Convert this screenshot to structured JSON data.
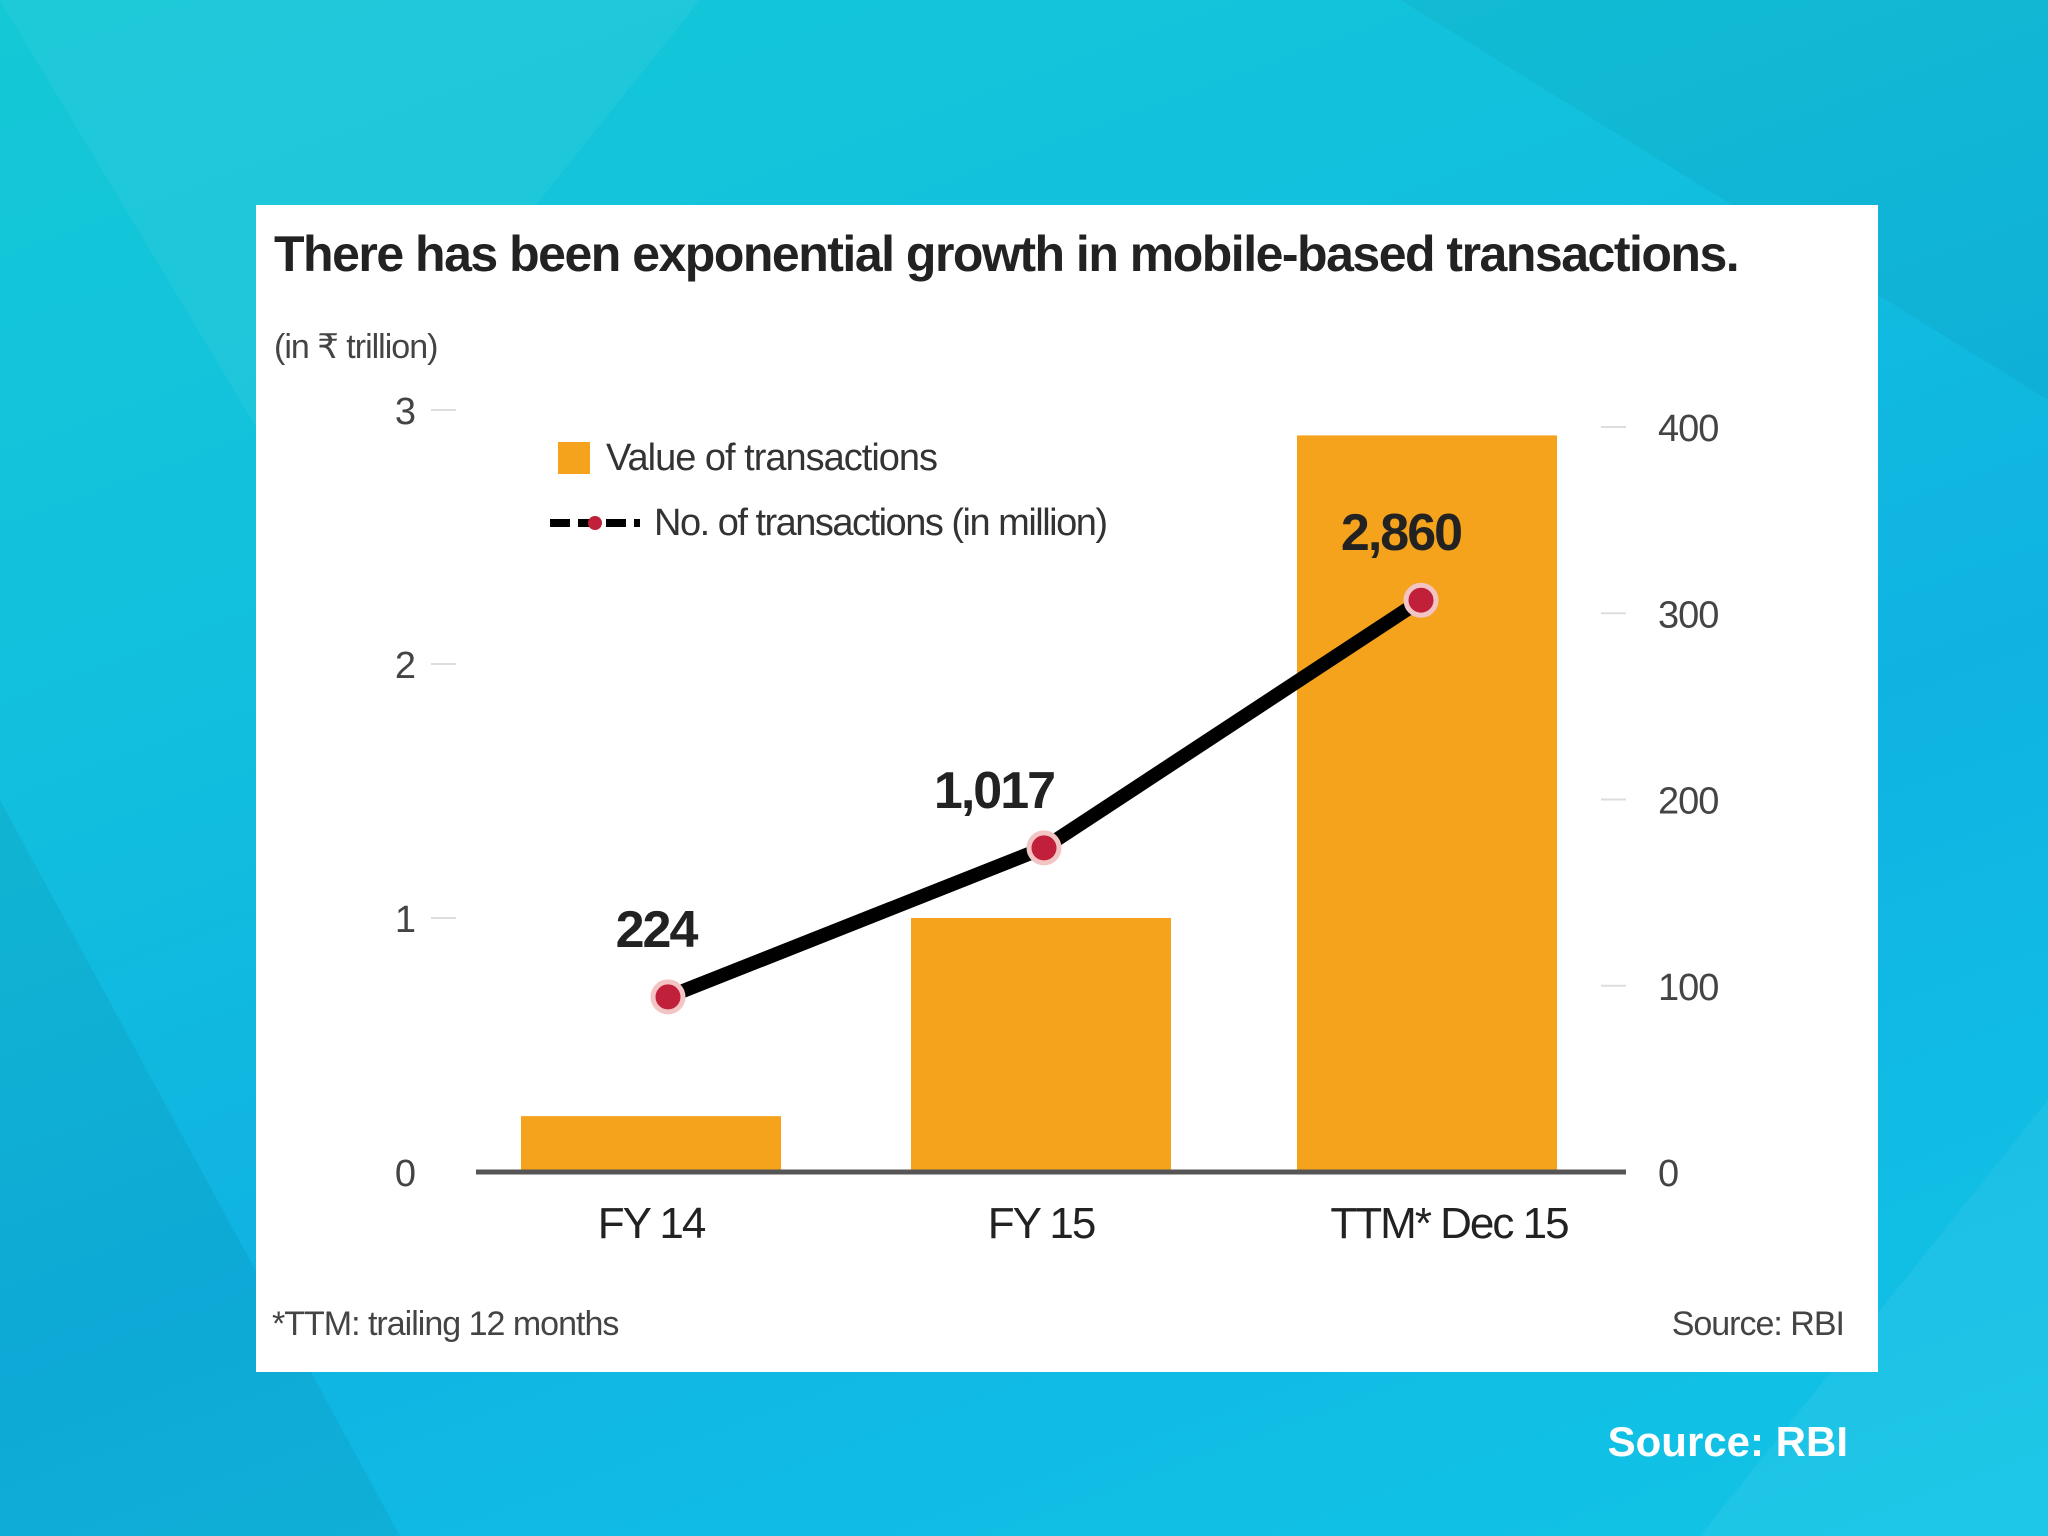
{
  "page": {
    "source": "Source: RBI"
  },
  "colors": {
    "bar": "#f5a21d",
    "line": "#000000",
    "marker": "#c0203a",
    "background": "#12c1dd"
  },
  "chart_data": {
    "type": "bar",
    "title": "There has been exponential growth in mobile-based transactions.",
    "ylabel": "(in ₹ trillion)",
    "ylim": [
      0,
      3
    ],
    "y2lim": [
      0,
      400
    ],
    "yticks": [
      "0",
      "1",
      "2",
      "3"
    ],
    "y2ticks": [
      "0",
      "100",
      "200",
      "300",
      "400"
    ],
    "categories": [
      "FY 14",
      "FY 15",
      "TTM* Dec 15"
    ],
    "series": [
      {
        "name": "Value of transactions",
        "type": "bar",
        "axis": "left",
        "values": [
          0.22,
          1.0,
          2.9
        ]
      },
      {
        "name": "No. of transactions (in million)",
        "type": "line",
        "axis": "right",
        "values": [
          94,
          174,
          307
        ],
        "labels": [
          "224",
          "1,017",
          "2,860"
        ]
      }
    ],
    "footnote": "*TTM: trailing 12 months",
    "source": "Source: RBI",
    "legend": "top-left",
    "grid": false
  }
}
